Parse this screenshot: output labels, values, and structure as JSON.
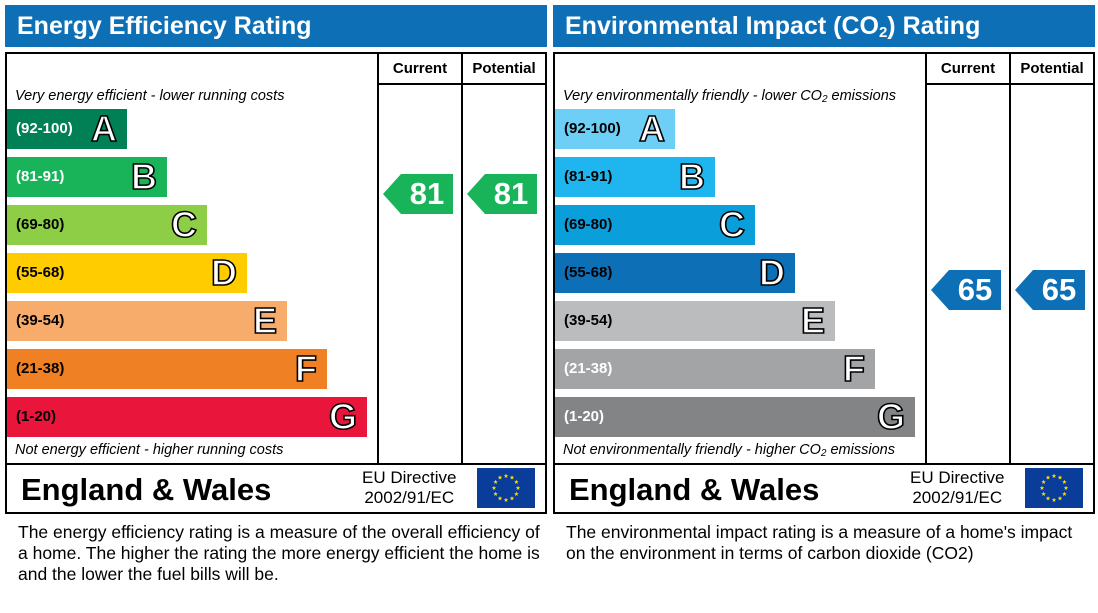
{
  "chart_data": [
    {
      "type": "bar",
      "title": "Energy Efficiency Rating",
      "columns": [
        "Current",
        "Potential"
      ],
      "top_note": "Very energy efficient - lower running costs",
      "bottom_note": "Not energy efficient - higher running costs",
      "bands": [
        {
          "range": "(92-100)",
          "letter": "A",
          "color": "#008054",
          "text_color": "#ffffff"
        },
        {
          "range": "(81-91)",
          "letter": "B",
          "color": "#19b459",
          "text_color": "#ffffff"
        },
        {
          "range": "(69-80)",
          "letter": "C",
          "color": "#8dce46",
          "text_color": "#000000"
        },
        {
          "range": "(55-68)",
          "letter": "D",
          "color": "#ffcc00",
          "text_color": "#000000"
        },
        {
          "range": "(39-54)",
          "letter": "E",
          "color": "#f7ac6b",
          "text_color": "#000000"
        },
        {
          "range": "(21-38)",
          "letter": "F",
          "color": "#ef8023",
          "text_color": "#000000"
        },
        {
          "range": "(1-20)",
          "letter": "G",
          "color": "#e9153b",
          "text_color": "#000000"
        }
      ],
      "current": {
        "value": 81,
        "band": "B",
        "color": "#19b459"
      },
      "potential": {
        "value": 81,
        "band": "B",
        "color": "#19b459"
      },
      "country": "England & Wales",
      "directive": [
        "EU Directive",
        "2002/91/EC"
      ],
      "description": "The energy efficiency rating is a measure of the overall efficiency of a home.  The higher the rating the more energy efficient the home is and the lower the fuel bills will be."
    },
    {
      "type": "bar",
      "title": "Environmental Impact (CO",
      "title_sub": "2",
      "title_end": ") Rating",
      "columns": [
        "Current",
        "Potential"
      ],
      "top_note": "Very environmentally friendly - lower CO",
      "top_note_sub": "2",
      "top_note_end": " emissions",
      "bottom_note": "Not environmentally friendly - higher CO",
      "bottom_note_sub": "2",
      "bottom_note_end": " emissions",
      "bands": [
        {
          "range": "(92-100)",
          "letter": "A",
          "color": "#6ecff6",
          "text_color": "#000000"
        },
        {
          "range": "(81-91)",
          "letter": "B",
          "color": "#1fb5ee",
          "text_color": "#000000"
        },
        {
          "range": "(69-80)",
          "letter": "C",
          "color": "#0a9edb",
          "text_color": "#000000"
        },
        {
          "range": "(55-68)",
          "letter": "D",
          "color": "#0d70b7",
          "text_color": "#000000"
        },
        {
          "range": "(39-54)",
          "letter": "E",
          "color": "#bbbcbe",
          "text_color": "#000000"
        },
        {
          "range": "(21-38)",
          "letter": "F",
          "color": "#a3a4a6",
          "text_color": "#ffffff"
        },
        {
          "range": "(1-20)",
          "letter": "G",
          "color": "#838486",
          "text_color": "#ffffff"
        }
      ],
      "current": {
        "value": 65,
        "band": "D",
        "color": "#0d70b7"
      },
      "potential": {
        "value": 65,
        "band": "D",
        "color": "#0d70b7"
      },
      "country": "England & Wales",
      "directive": [
        "EU Directive",
        "2002/91/EC"
      ],
      "description": "The environmental impact rating is a measure of a home's impact on the environment in terms of carbon dioxide (CO2)"
    }
  ],
  "icons": {
    "flag": "eu-flag-icon"
  }
}
